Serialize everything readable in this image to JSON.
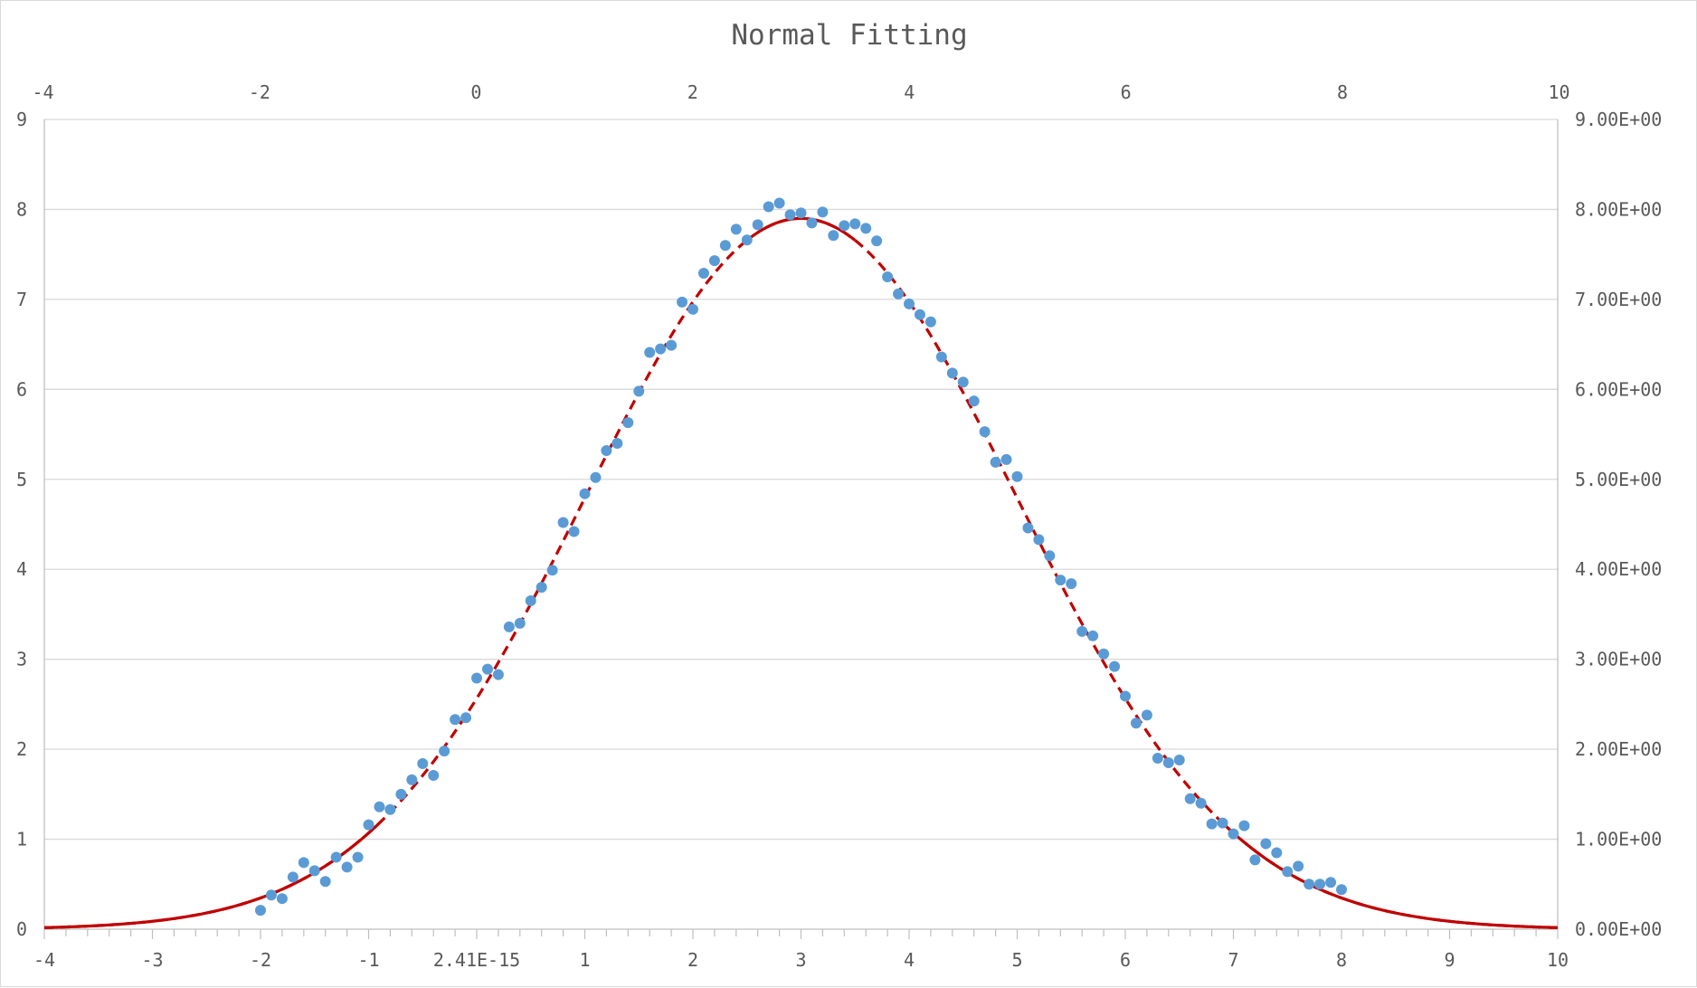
{
  "chart_data": {
    "type": "scatter",
    "title": "Normal Fitting",
    "xlabel": "",
    "ylabel": "",
    "grid": true,
    "legend": "none",
    "colors": {
      "points": "#5b9bd5",
      "curve": "#c00000",
      "grid": "#d9d9d9",
      "axis": "#bfbfbf",
      "text": "#595959"
    },
    "axes": {
      "x_bottom": {
        "min": -4,
        "max": 10,
        "ticks": [
          "-4",
          "-3",
          "-2",
          "-1",
          "2.41E-15",
          "1",
          "2",
          "3",
          "4",
          "5",
          "6",
          "7",
          "8",
          "9",
          "10"
        ]
      },
      "x_top": {
        "min": -4,
        "max": 10,
        "ticks": [
          "-4",
          "-2",
          "0",
          "2",
          "4",
          "6",
          "8",
          "10"
        ]
      },
      "y_left": {
        "min": 0,
        "max": 9,
        "ticks": [
          "0",
          "1",
          "2",
          "3",
          "4",
          "5",
          "6",
          "7",
          "8",
          "9"
        ]
      },
      "y_right": {
        "min": 0,
        "max": 9,
        "ticks": [
          "0.00E+00",
          "1.00E+00",
          "2.00E+00",
          "3.00E+00",
          "4.00E+00",
          "5.00E+00",
          "6.00E+00",
          "7.00E+00",
          "8.00E+00",
          "9.00E+00"
        ]
      }
    },
    "fit": {
      "type": "normal",
      "amplitude": 7.9,
      "mean": 3.0,
      "sigma": 2.0,
      "x_range": [
        -4,
        10
      ],
      "solid_segments": [
        [
          -4,
          -0.9
        ],
        [
          2.6,
          3.5
        ],
        [
          6.9,
          10
        ]
      ]
    },
    "series": [
      {
        "x": [
          -2.0,
          -1.9,
          -1.8,
          -1.7,
          -1.6,
          -1.5,
          -1.4,
          -1.3,
          -1.2,
          -1.1,
          -1.0,
          -0.9,
          -0.8,
          -0.7,
          -0.6,
          -0.5,
          -0.4,
          -0.3,
          -0.2,
          -0.1,
          0.0,
          0.1,
          0.2,
          0.3,
          0.4,
          0.5,
          0.6,
          0.7,
          0.8,
          0.9,
          1.0,
          1.1,
          1.2,
          1.3,
          1.4,
          1.5,
          1.6,
          1.7,
          1.8,
          1.9,
          2.0,
          2.1,
          2.2,
          2.3,
          2.4,
          2.5,
          2.6,
          2.7,
          2.8,
          2.9,
          3.0,
          3.1,
          3.2,
          3.3,
          3.4,
          3.5,
          3.6,
          3.7,
          3.8,
          3.9,
          4.0,
          4.1,
          4.2,
          4.3,
          4.4,
          4.5,
          4.6,
          4.7,
          4.8,
          4.9,
          5.0,
          5.1,
          5.2,
          5.3,
          5.4,
          5.5,
          5.6,
          5.7,
          5.8,
          5.9,
          6.0,
          6.1,
          6.2,
          6.3,
          6.4,
          6.5,
          6.6,
          6.7,
          6.8,
          6.9,
          7.0,
          7.1,
          7.2,
          7.3,
          7.4,
          7.5,
          7.6,
          7.7,
          7.8,
          7.9,
          8.0
        ],
        "y": [
          0.21,
          0.38,
          0.34,
          0.58,
          0.74,
          0.65,
          0.53,
          0.8,
          0.69,
          0.8,
          1.16,
          1.36,
          1.33,
          1.5,
          1.66,
          1.84,
          1.71,
          1.98,
          2.33,
          2.35,
          2.79,
          2.89,
          2.83,
          3.36,
          3.4,
          3.65,
          3.8,
          3.99,
          4.52,
          4.42,
          4.84,
          5.02,
          5.32,
          5.4,
          5.63,
          5.98,
          6.41,
          6.45,
          6.49,
          6.97,
          6.89,
          7.29,
          7.43,
          7.6,
          7.78,
          7.66,
          7.83,
          8.03,
          8.07,
          7.94,
          7.96,
          7.85,
          7.97,
          7.71,
          7.82,
          7.84,
          7.79,
          7.65,
          7.25,
          7.06,
          6.95,
          6.83,
          6.75,
          6.36,
          6.18,
          6.08,
          5.87,
          5.53,
          5.19,
          5.22,
          5.03,
          4.46,
          4.33,
          4.15,
          3.88,
          3.84,
          3.31,
          3.26,
          3.06,
          2.92,
          2.59,
          2.29,
          2.38,
          1.9,
          1.85,
          1.88,
          1.45,
          1.4,
          1.17,
          1.18,
          1.06,
          1.15,
          0.77,
          0.95,
          0.85,
          0.64,
          0.7,
          0.5,
          0.5,
          0.52,
          0.44
        ]
      }
    ]
  }
}
